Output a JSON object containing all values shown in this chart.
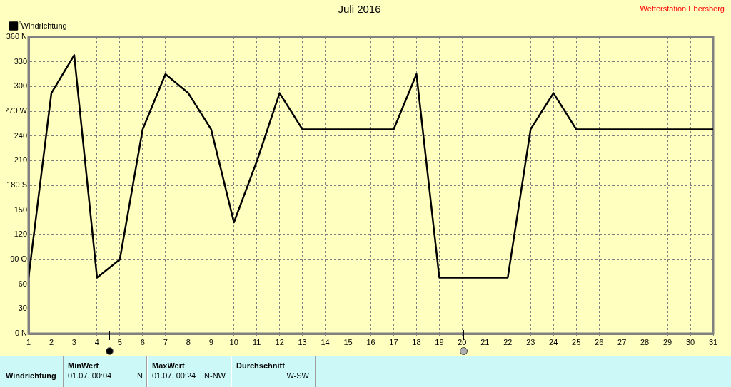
{
  "chart_data": {
    "type": "line",
    "title": "Juli 2016",
    "ylabel": "°",
    "x": [
      1,
      2,
      3,
      4,
      5,
      6,
      7,
      8,
      9,
      10,
      11,
      12,
      13,
      14,
      15,
      16,
      17,
      18,
      19,
      20,
      21,
      22,
      23,
      24,
      25,
      26,
      27,
      28,
      29,
      30,
      31
    ],
    "xlim": [
      1,
      31
    ],
    "xticks": [
      1,
      2,
      3,
      4,
      5,
      6,
      7,
      8,
      9,
      10,
      11,
      12,
      13,
      14,
      15,
      16,
      17,
      18,
      19,
      20,
      21,
      22,
      23,
      24,
      25,
      26,
      27,
      28,
      29,
      30,
      31
    ],
    "ylim": [
      0,
      360
    ],
    "yticks": [
      {
        "value": 0,
        "label": "0 N"
      },
      30,
      60,
      {
        "value": 90,
        "label": "90 O"
      },
      120,
      150,
      {
        "value": 180,
        "label": "180 S"
      },
      210,
      240,
      {
        "value": 270,
        "label": "270 W"
      },
      300,
      330,
      {
        "value": 360,
        "label": "360 N"
      }
    ],
    "series": [
      {
        "name": "Windrichtung",
        "color": "#000000",
        "values": [
          68,
          292,
          338,
          68,
          90,
          248,
          315,
          292,
          248,
          135,
          209,
          292,
          248,
          248,
          248,
          248,
          248,
          315,
          68,
          68,
          68,
          68,
          248,
          292,
          248,
          248,
          248,
          248,
          248,
          248,
          248
        ]
      }
    ],
    "grid": true,
    "legend": "top left",
    "marker": "none",
    "line_style": "solid",
    "annotations": [
      "Wetterstation Ebersberg",
      "Windrichtung",
      "MinWert",
      "01.07. 00:04",
      "N",
      "MaxWert",
      "01.07. 00:24",
      "N-NW",
      "Durchschnitt",
      "W-SW"
    ]
  }
}
